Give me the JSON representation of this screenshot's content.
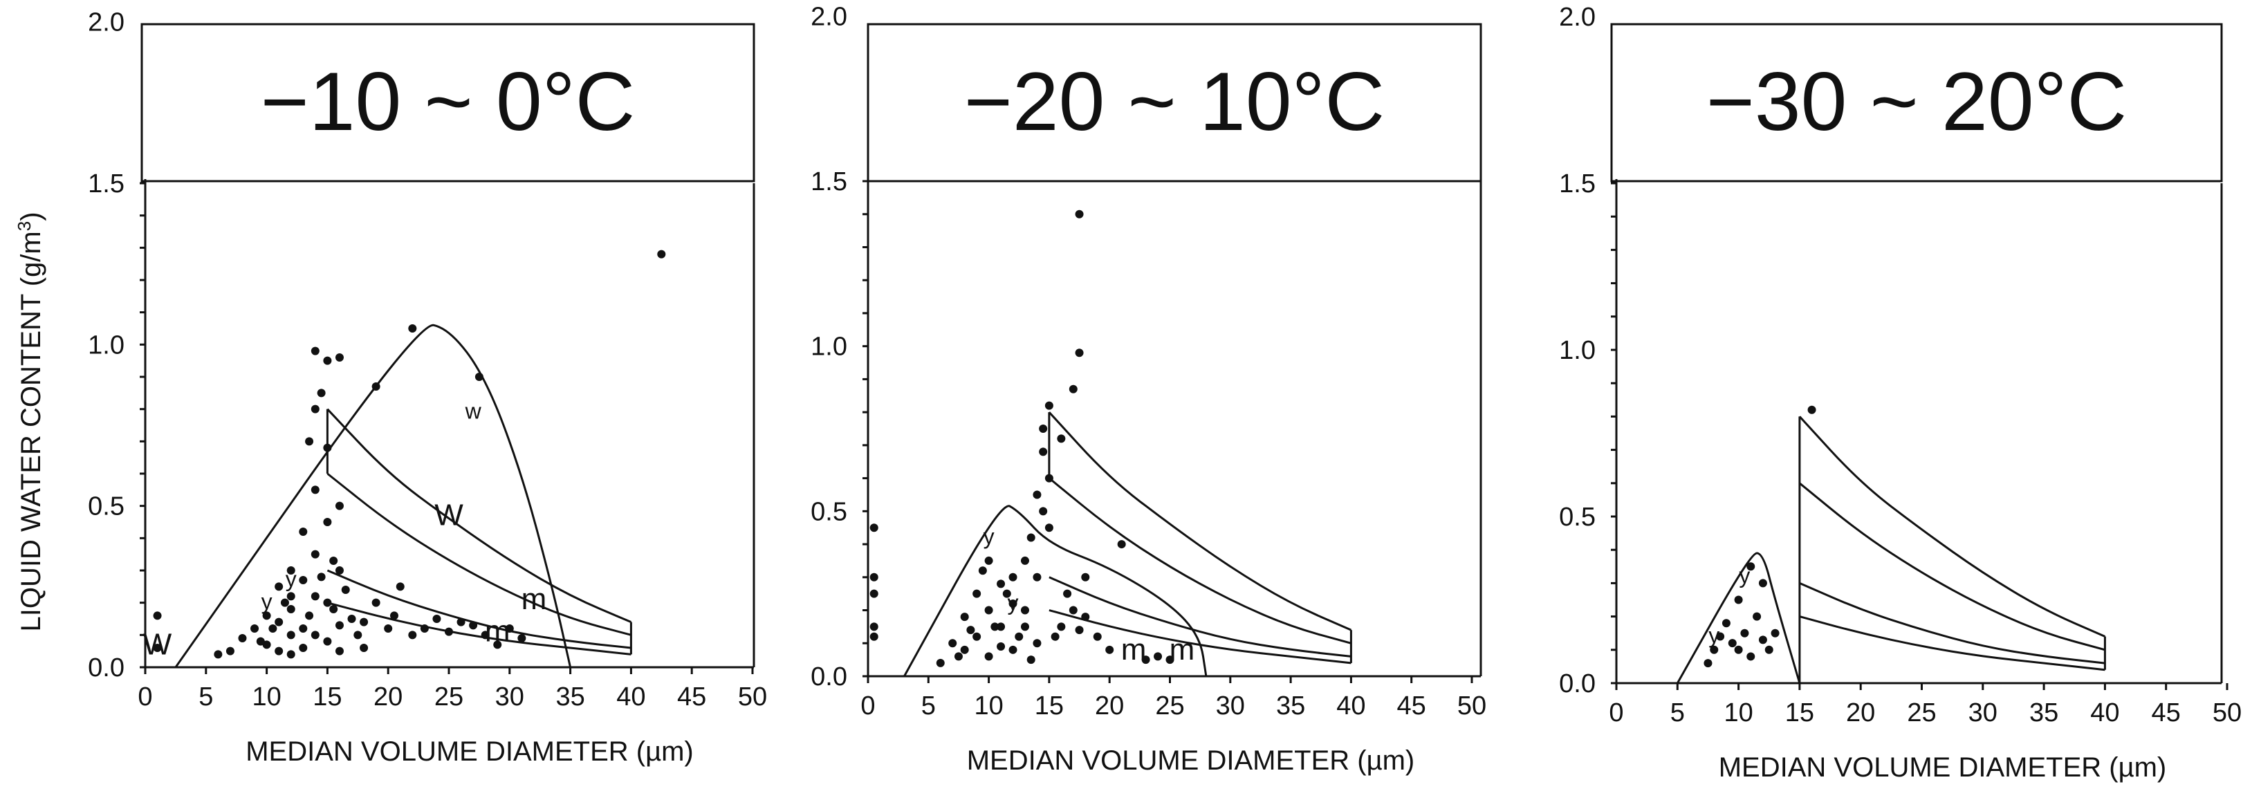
{
  "figure": {
    "ylabel_prefix": "LIQUID WATER CONTENT (g/m",
    "ylabel_sup": "3",
    "ylabel_suffix": ")",
    "yticks": [
      "0.0",
      "0.5",
      "1.0",
      "1.5",
      "2.0"
    ],
    "xticks": [
      "0",
      "5",
      "10",
      "15",
      "20",
      "25",
      "30",
      "35",
      "40",
      "45",
      "50"
    ],
    "xlabel": "MEDIAN VOLUME DIAMETER (µm)"
  },
  "chart_data": [
    {
      "type": "scatter",
      "title": "−10 ~ 0°C",
      "xlabel": "MEDIAN VOLUME DIAMETER (µm)",
      "ylabel": "LIQUID WATER CONTENT (g/m3)",
      "xlim": [
        0,
        50
      ],
      "ylim": [
        0,
        2.0
      ],
      "envelopes": [
        {
          "points": [
            [
              2.5,
              0
            ],
            [
              22.5,
              1.07
            ],
            [
              25,
              1.05
            ],
            [
              28,
              0.9
            ],
            [
              31,
              0.6
            ],
            [
              33.5,
              0.25
            ],
            [
              35,
              0
            ]
          ]
        },
        {
          "points": [
            [
              15,
              0.8
            ],
            [
              15,
              0.6
            ]
          ]
        },
        {
          "points": [
            [
              15,
              0.8
            ],
            [
              20,
              0.6
            ],
            [
              25,
              0.46
            ],
            [
              30,
              0.33
            ],
            [
              35,
              0.22
            ],
            [
              40,
              0.14
            ]
          ]
        },
        {
          "points": [
            [
              15,
              0.6
            ],
            [
              20,
              0.45
            ],
            [
              25,
              0.33
            ],
            [
              30,
              0.23
            ],
            [
              35,
              0.15
            ],
            [
              40,
              0.1
            ]
          ]
        },
        {
          "points": [
            [
              15,
              0.3
            ],
            [
              20,
              0.22
            ],
            [
              25,
              0.16
            ],
            [
              30,
              0.11
            ],
            [
              35,
              0.08
            ],
            [
              40,
              0.06
            ]
          ]
        },
        {
          "points": [
            [
              15,
              0.2
            ],
            [
              20,
              0.15
            ],
            [
              25,
              0.11
            ],
            [
              30,
              0.08
            ],
            [
              35,
              0.06
            ],
            [
              40,
              0.04
            ]
          ]
        },
        {
          "points": [
            [
              40,
              0.14
            ],
            [
              40,
              0.04
            ]
          ]
        }
      ],
      "markers": [
        {
          "text": "w",
          "x": 27,
          "y": 0.77
        },
        {
          "text": "W",
          "x": 25,
          "y": 0.44
        },
        {
          "text": "m",
          "x": 32,
          "y": 0.18
        },
        {
          "text": "m",
          "x": 29,
          "y": 0.08
        },
        {
          "text": "W",
          "x": 1,
          "y": 0.04
        },
        {
          "text": "y",
          "x": 10,
          "y": 0.18
        },
        {
          "text": "y",
          "x": 12,
          "y": 0.25
        }
      ],
      "points": [
        [
          14,
          0.98
        ],
        [
          15,
          0.95
        ],
        [
          16,
          0.96
        ],
        [
          19,
          0.87
        ],
        [
          22,
          1.05
        ],
        [
          27.5,
          0.9
        ],
        [
          42.5,
          1.28
        ],
        [
          14,
          0.8
        ],
        [
          14.5,
          0.85
        ],
        [
          13.5,
          0.7
        ],
        [
          15,
          0.68
        ],
        [
          14,
          0.55
        ],
        [
          16,
          0.5
        ],
        [
          15,
          0.45
        ],
        [
          13,
          0.42
        ],
        [
          14,
          0.35
        ],
        [
          15.5,
          0.33
        ],
        [
          16,
          0.3
        ],
        [
          12,
          0.3
        ],
        [
          13,
          0.27
        ],
        [
          11,
          0.25
        ],
        [
          14,
          0.22
        ],
        [
          15,
          0.2
        ],
        [
          12,
          0.18
        ],
        [
          10,
          0.16
        ],
        [
          11,
          0.14
        ],
        [
          13,
          0.12
        ],
        [
          9,
          0.12
        ],
        [
          12,
          0.1
        ],
        [
          14,
          0.1
        ],
        [
          16,
          0.13
        ],
        [
          17,
          0.15
        ],
        [
          18,
          0.14
        ],
        [
          20,
          0.12
        ],
        [
          22,
          0.1
        ],
        [
          8,
          0.09
        ],
        [
          10,
          0.07
        ],
        [
          11,
          0.05
        ],
        [
          13,
          0.06
        ],
        [
          15,
          0.08
        ],
        [
          6,
          0.04
        ],
        [
          7,
          0.05
        ],
        [
          12,
          0.04
        ],
        [
          19,
          0.2
        ],
        [
          21,
          0.25
        ],
        [
          24,
          0.15
        ],
        [
          26,
          0.14
        ],
        [
          28,
          0.1
        ],
        [
          30,
          0.12
        ],
        [
          31,
          0.09
        ],
        [
          1,
          0.16
        ],
        [
          1,
          0.06
        ],
        [
          12,
          0.22
        ],
        [
          14.5,
          0.28
        ],
        [
          16.5,
          0.24
        ],
        [
          11.5,
          0.2
        ],
        [
          13.5,
          0.16
        ],
        [
          10.5,
          0.12
        ],
        [
          9.5,
          0.08
        ],
        [
          15.5,
          0.18
        ],
        [
          17.5,
          0.1
        ],
        [
          20.5,
          0.16
        ],
        [
          23,
          0.12
        ],
        [
          25,
          0.11
        ],
        [
          27,
          0.13
        ],
        [
          29,
          0.07
        ],
        [
          18,
          0.06
        ],
        [
          16,
          0.05
        ]
      ]
    },
    {
      "type": "scatter",
      "title": "−20 ~ 10°C",
      "xlabel": "MEDIAN VOLUME DIAMETER (µm)",
      "ylabel": "LIQUID WATER CONTENT (g/m3)",
      "xlim": [
        0,
        50
      ],
      "ylim": [
        0,
        2.0
      ],
      "envelopes": [
        {
          "points": [
            [
              3,
              0
            ],
            [
              11,
              0.53
            ],
            [
              12.5,
              0.5
            ],
            [
              15,
              0.4
            ],
            [
              20,
              0.33
            ],
            [
              25,
              0.22
            ],
            [
              27.5,
              0.12
            ],
            [
              28,
              0
            ]
          ]
        },
        {
          "points": [
            [
              15,
              0.8
            ],
            [
              15,
              0.6
            ]
          ]
        },
        {
          "points": [
            [
              15,
              0.8
            ],
            [
              20,
              0.6
            ],
            [
              25,
              0.46
            ],
            [
              30,
              0.33
            ],
            [
              35,
              0.22
            ],
            [
              40,
              0.14
            ]
          ]
        },
        {
          "points": [
            [
              15,
              0.6
            ],
            [
              20,
              0.45
            ],
            [
              25,
              0.33
            ],
            [
              30,
              0.23
            ],
            [
              35,
              0.15
            ],
            [
              40,
              0.1
            ]
          ]
        },
        {
          "points": [
            [
              15,
              0.3
            ],
            [
              20,
              0.22
            ],
            [
              25,
              0.16
            ],
            [
              30,
              0.11
            ],
            [
              35,
              0.08
            ],
            [
              40,
              0.06
            ]
          ]
        },
        {
          "points": [
            [
              15,
              0.2
            ],
            [
              20,
              0.15
            ],
            [
              25,
              0.11
            ],
            [
              30,
              0.08
            ],
            [
              35,
              0.06
            ],
            [
              40,
              0.04
            ]
          ]
        },
        {
          "points": [
            [
              40,
              0.14
            ],
            [
              40,
              0.04
            ]
          ]
        }
      ],
      "markers": [
        {
          "text": "m",
          "x": 22,
          "y": 0.05
        },
        {
          "text": "m",
          "x": 26,
          "y": 0.05
        },
        {
          "text": "y",
          "x": 10,
          "y": 0.4
        },
        {
          "text": "y",
          "x": 12,
          "y": 0.2
        }
      ],
      "points": [
        [
          17.5,
          1.4
        ],
        [
          17.5,
          0.98
        ],
        [
          17,
          0.87
        ],
        [
          15,
          0.82
        ],
        [
          14.5,
          0.75
        ],
        [
          16,
          0.72
        ],
        [
          14.5,
          0.68
        ],
        [
          15,
          0.6
        ],
        [
          14,
          0.55
        ],
        [
          14.5,
          0.5
        ],
        [
          15,
          0.45
        ],
        [
          13.5,
          0.42
        ],
        [
          13,
          0.35
        ],
        [
          14,
          0.3
        ],
        [
          12,
          0.3
        ],
        [
          10,
          0.35
        ],
        [
          11,
          0.28
        ],
        [
          9,
          0.25
        ],
        [
          12,
          0.22
        ],
        [
          10,
          0.2
        ],
        [
          8,
          0.18
        ],
        [
          11,
          0.15
        ],
        [
          13,
          0.15
        ],
        [
          9,
          0.12
        ],
        [
          7,
          0.1
        ],
        [
          8,
          0.08
        ],
        [
          10,
          0.06
        ],
        [
          12,
          0.08
        ],
        [
          14,
          0.1
        ],
        [
          16,
          0.15
        ],
        [
          17,
          0.2
        ],
        [
          18,
          0.18
        ],
        [
          19,
          0.12
        ],
        [
          21,
          0.4
        ],
        [
          20,
          0.08
        ],
        [
          23,
          0.05
        ],
        [
          24,
          0.06
        ],
        [
          25,
          0.05
        ],
        [
          0.5,
          0.45
        ],
        [
          0.5,
          0.3
        ],
        [
          0.5,
          0.25
        ],
        [
          0.5,
          0.15
        ],
        [
          0.5,
          0.12
        ],
        [
          9.5,
          0.32
        ],
        [
          11.5,
          0.25
        ],
        [
          13,
          0.2
        ],
        [
          10.5,
          0.15
        ],
        [
          12.5,
          0.12
        ],
        [
          8.5,
          0.14
        ],
        [
          7.5,
          0.06
        ],
        [
          15.5,
          0.12
        ],
        [
          17.5,
          0.14
        ],
        [
          16.5,
          0.25
        ],
        [
          18,
          0.3
        ],
        [
          6,
          0.04
        ],
        [
          11,
          0.09
        ],
        [
          13.5,
          0.05
        ]
      ]
    },
    {
      "type": "scatter",
      "title": "−30 ~ 20°C",
      "xlabel": "MEDIAN VOLUME DIAMETER (µm)",
      "ylabel": "LIQUID WATER CONTENT (g/m3)",
      "xlim": [
        0,
        50
      ],
      "ylim": [
        0,
        2.0
      ],
      "envelopes": [
        {
          "points": [
            [
              5,
              0
            ],
            [
              11,
              0.39
            ],
            [
              12,
              0.39
            ],
            [
              13,
              0.25
            ],
            [
              15,
              0
            ]
          ]
        },
        {
          "points": [
            [
              15,
              0.8
            ],
            [
              15,
              0
            ]
          ]
        },
        {
          "points": [
            [
              15,
              0.8
            ],
            [
              20,
              0.6
            ],
            [
              25,
              0.46
            ],
            [
              30,
              0.33
            ],
            [
              35,
              0.22
            ],
            [
              40,
              0.14
            ]
          ]
        },
        {
          "points": [
            [
              15,
              0.6
            ],
            [
              20,
              0.45
            ],
            [
              25,
              0.33
            ],
            [
              30,
              0.23
            ],
            [
              35,
              0.15
            ],
            [
              40,
              0.1
            ]
          ]
        },
        {
          "points": [
            [
              15,
              0.3
            ],
            [
              20,
              0.22
            ],
            [
              25,
              0.16
            ],
            [
              30,
              0.11
            ],
            [
              35,
              0.08
            ],
            [
              40,
              0.06
            ]
          ]
        },
        {
          "points": [
            [
              15,
              0.2
            ],
            [
              20,
              0.15
            ],
            [
              25,
              0.11
            ],
            [
              30,
              0.08
            ],
            [
              35,
              0.06
            ],
            [
              40,
              0.04
            ]
          ]
        },
        {
          "points": [
            [
              40,
              0.14
            ],
            [
              40,
              0.04
            ]
          ]
        }
      ],
      "markers": [
        {
          "text": "y",
          "x": 10.5,
          "y": 0.3
        },
        {
          "text": "y",
          "x": 8,
          "y": 0.12
        }
      ],
      "points": [
        [
          16,
          0.82
        ],
        [
          11,
          0.35
        ],
        [
          12,
          0.3
        ],
        [
          10,
          0.25
        ],
        [
          11.5,
          0.2
        ],
        [
          9,
          0.18
        ],
        [
          10.5,
          0.15
        ],
        [
          12,
          0.13
        ],
        [
          8,
          0.1
        ],
        [
          9.5,
          0.12
        ],
        [
          7.5,
          0.06
        ],
        [
          11,
          0.08
        ],
        [
          12.5,
          0.1
        ],
        [
          13,
          0.15
        ],
        [
          10,
          0.1
        ],
        [
          8.5,
          0.14
        ]
      ]
    }
  ]
}
